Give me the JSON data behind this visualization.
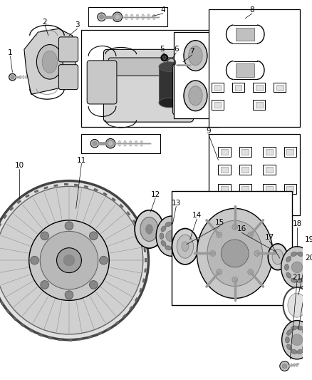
{
  "bg_color": "#ffffff",
  "fig_width": 4.38,
  "fig_height": 5.33,
  "dpi": 100,
  "lc": "#000000",
  "gray1": "#c8c8c8",
  "gray2": "#d8d8d8",
  "gray3": "#e8e8e8",
  "dark_gray": "#888888",
  "black": "#111111",
  "label_fs": 7.5,
  "leader_lw": 0.6
}
